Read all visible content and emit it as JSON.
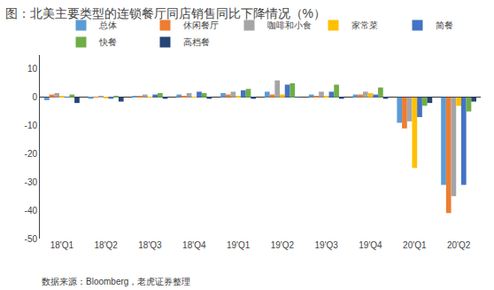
{
  "chart_data": {
    "type": "bar",
    "title": "图：北美主要类型的连锁餐厅同店销售同比下降情况（%）",
    "annotations": [
      "数据来源：Bloomberg，老虎证券整理"
    ],
    "categories": [
      "18'Q1",
      "18'Q2",
      "18'Q3",
      "18'Q4",
      "19'Q1",
      "19'Q2",
      "19'Q3",
      "19'Q4",
      "20'Q1",
      "20'Q2"
    ],
    "series": [
      {
        "name": "总体",
        "color": "#5B9BD5",
        "values": [
          -1.0,
          -0.5,
          0.5,
          1.0,
          1.5,
          2.0,
          1.0,
          1.0,
          -9.0,
          -31.0
        ]
      },
      {
        "name": "休闲餐厅",
        "color": "#ED7D31",
        "values": [
          1.0,
          0.2,
          0.3,
          0.5,
          1.0,
          1.0,
          0.5,
          1.0,
          -11.0,
          -41.0
        ]
      },
      {
        "name": "咖啡和小食",
        "color": "#A5A5A5",
        "values": [
          1.5,
          0.3,
          1.0,
          1.5,
          2.0,
          6.0,
          2.0,
          2.0,
          -8.5,
          -35.0
        ]
      },
      {
        "name": "家常菜",
        "color": "#FFC000",
        "values": [
          0.5,
          -0.3,
          0.2,
          0.2,
          0.5,
          1.0,
          0.5,
          1.5,
          -25.0,
          -3.0
        ]
      },
      {
        "name": "简餐",
        "color": "#4472C4",
        "values": [
          0.2,
          -0.5,
          1.0,
          2.0,
          2.5,
          4.5,
          2.0,
          1.0,
          -7.0,
          -31.0
        ]
      },
      {
        "name": "快餐",
        "color": "#70AD47",
        "values": [
          1.0,
          0.5,
          1.5,
          1.5,
          3.0,
          5.0,
          4.5,
          3.5,
          -3.0,
          -5.0
        ]
      },
      {
        "name": "高档餐",
        "color": "#264478",
        "values": [
          -2.0,
          -1.5,
          -0.5,
          -0.5,
          -0.5,
          0.2,
          -0.5,
          -0.5,
          -2.0,
          -1.5
        ]
      }
    ],
    "ylim": [
      -50,
      15
    ],
    "yticks": [
      -50,
      -40,
      -30,
      -20,
      -10,
      0,
      10
    ],
    "grid": false,
    "legend": "upper center"
  }
}
